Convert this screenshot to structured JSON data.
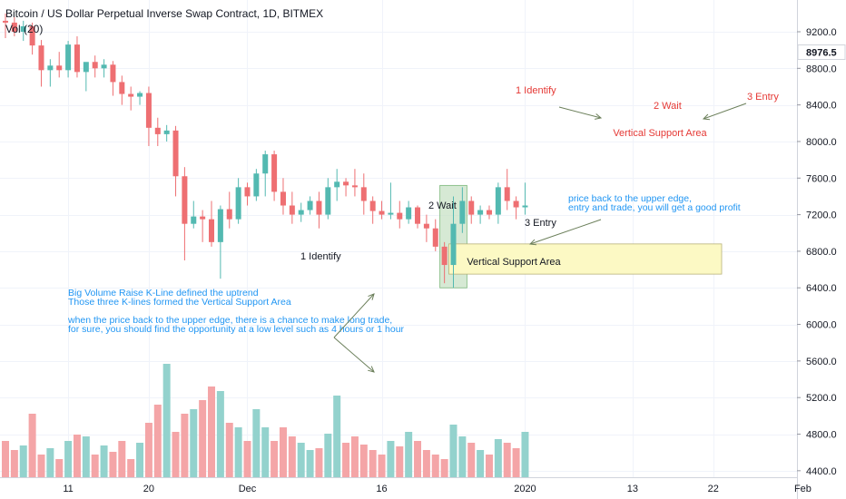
{
  "header": {
    "title": "Bitcoin / US Dollar Perpetual Inverse Swap Contract, 1D, BITMEX",
    "volume_label": "Vol (20)"
  },
  "colors": {
    "up": "#53b9b1",
    "down": "#ee6f72",
    "vol_up": "#93d2cd",
    "vol_down": "#f4a5a7",
    "annotation_blue": "#2196f3",
    "annotation_red": "#e53935",
    "highlight_green": "#c8e1c6",
    "support_yellow": "#fcf9c4",
    "price_label_bg": "#ffffff"
  },
  "chart_data": {
    "type": "candlestick",
    "price_axis": {
      "ticks": [
        4400,
        4800,
        5200,
        5600,
        6000,
        6400,
        6800,
        7200,
        7600,
        8000,
        8400,
        8800,
        9200
      ],
      "tick_labels": [
        "4400.0",
        "4800.0",
        "5200.0",
        "5600.0",
        "6000.0",
        "6400.0",
        "6800.0",
        "7200.0",
        "7600.0",
        "8000.0",
        "8400.0",
        "8800.0",
        "9200.0"
      ],
      "last_price": "8976.5"
    },
    "time_axis": {
      "ticks": [
        {
          "label": "11",
          "bar": 7
        },
        {
          "label": "20",
          "bar": 16
        },
        {
          "label": "Dec",
          "bar": 27
        },
        {
          "label": "16",
          "bar": 42
        },
        {
          "label": "2020",
          "bar": 58
        },
        {
          "label": "13",
          "bar": 70
        },
        {
          "label": "22",
          "bar": 79
        },
        {
          "label": "Feb",
          "bar": 89
        }
      ]
    },
    "candles": [
      {
        "o": 9320,
        "h": 9400,
        "l": 9130,
        "c": 9300
      },
      {
        "o": 9300,
        "h": 9360,
        "l": 9150,
        "c": 9200
      },
      {
        "o": 9200,
        "h": 9320,
        "l": 9100,
        "c": 9260
      },
      {
        "o": 9260,
        "h": 9300,
        "l": 8950,
        "c": 9050
      },
      {
        "o": 9050,
        "h": 9110,
        "l": 8600,
        "c": 8780
      },
      {
        "o": 8780,
        "h": 8900,
        "l": 8600,
        "c": 8830
      },
      {
        "o": 8830,
        "h": 8980,
        "l": 8700,
        "c": 8780
      },
      {
        "o": 8780,
        "h": 9100,
        "l": 8700,
        "c": 9060
      },
      {
        "o": 9060,
        "h": 9150,
        "l": 8700,
        "c": 8760
      },
      {
        "o": 8760,
        "h": 8860,
        "l": 8550,
        "c": 8870
      },
      {
        "o": 8870,
        "h": 8940,
        "l": 8700,
        "c": 8800
      },
      {
        "o": 8800,
        "h": 8900,
        "l": 8700,
        "c": 8840
      },
      {
        "o": 8840,
        "h": 8880,
        "l": 8500,
        "c": 8650
      },
      {
        "o": 8650,
        "h": 8720,
        "l": 8400,
        "c": 8520
      },
      {
        "o": 8520,
        "h": 8600,
        "l": 8340,
        "c": 8490
      },
      {
        "o": 8490,
        "h": 8550,
        "l": 8400,
        "c": 8530
      },
      {
        "o": 8530,
        "h": 8600,
        "l": 7950,
        "c": 8150
      },
      {
        "o": 8150,
        "h": 8260,
        "l": 7950,
        "c": 8080
      },
      {
        "o": 8080,
        "h": 8180,
        "l": 8000,
        "c": 8120
      },
      {
        "o": 8120,
        "h": 8170,
        "l": 7400,
        "c": 7620
      },
      {
        "o": 7620,
        "h": 7720,
        "l": 6700,
        "c": 7100
      },
      {
        "o": 7100,
        "h": 7350,
        "l": 7050,
        "c": 7180
      },
      {
        "o": 7180,
        "h": 7250,
        "l": 6900,
        "c": 7150
      },
      {
        "o": 7150,
        "h": 7350,
        "l": 6850,
        "c": 6900
      },
      {
        "o": 6900,
        "h": 7300,
        "l": 6500,
        "c": 7260
      },
      {
        "o": 7260,
        "h": 7450,
        "l": 7050,
        "c": 7150
      },
      {
        "o": 7150,
        "h": 7600,
        "l": 7100,
        "c": 7500
      },
      {
        "o": 7500,
        "h": 7550,
        "l": 7300,
        "c": 7400
      },
      {
        "o": 7400,
        "h": 7700,
        "l": 7350,
        "c": 7650
      },
      {
        "o": 7650,
        "h": 7900,
        "l": 7400,
        "c": 7860
      },
      {
        "o": 7860,
        "h": 7900,
        "l": 7350,
        "c": 7450
      },
      {
        "o": 7450,
        "h": 7600,
        "l": 7200,
        "c": 7300
      },
      {
        "o": 7300,
        "h": 7450,
        "l": 7100,
        "c": 7200
      },
      {
        "o": 7200,
        "h": 7330,
        "l": 7120,
        "c": 7250
      },
      {
        "o": 7250,
        "h": 7400,
        "l": 7200,
        "c": 7350
      },
      {
        "o": 7350,
        "h": 7450,
        "l": 7050,
        "c": 7200
      },
      {
        "o": 7200,
        "h": 7600,
        "l": 7150,
        "c": 7500
      },
      {
        "o": 7500,
        "h": 7700,
        "l": 7350,
        "c": 7560
      },
      {
        "o": 7560,
        "h": 7600,
        "l": 7400,
        "c": 7520
      },
      {
        "o": 7520,
        "h": 7700,
        "l": 7400,
        "c": 7500
      },
      {
        "o": 7500,
        "h": 7650,
        "l": 7200,
        "c": 7350
      },
      {
        "o": 7350,
        "h": 7400,
        "l": 7100,
        "c": 7240
      },
      {
        "o": 7240,
        "h": 7350,
        "l": 7150,
        "c": 7200
      },
      {
        "o": 7200,
        "h": 7550,
        "l": 7150,
        "c": 7220
      },
      {
        "o": 7220,
        "h": 7350,
        "l": 7050,
        "c": 7150
      },
      {
        "o": 7150,
        "h": 7350,
        "l": 7100,
        "c": 7280
      },
      {
        "o": 7280,
        "h": 7300,
        "l": 7050,
        "c": 7100
      },
      {
        "o": 7100,
        "h": 7200,
        "l": 6900,
        "c": 7050
      },
      {
        "o": 7050,
        "h": 7150,
        "l": 6800,
        "c": 6850
      },
      {
        "o": 6850,
        "h": 6900,
        "l": 6450,
        "c": 6650
      },
      {
        "o": 6650,
        "h": 7400,
        "l": 6400,
        "c": 7100
      },
      {
        "o": 7100,
        "h": 7500,
        "l": 7000,
        "c": 7350
      },
      {
        "o": 7350,
        "h": 7400,
        "l": 7100,
        "c": 7200
      },
      {
        "o": 7200,
        "h": 7300,
        "l": 7100,
        "c": 7250
      },
      {
        "o": 7250,
        "h": 7300,
        "l": 7150,
        "c": 7200
      },
      {
        "o": 7200,
        "h": 7550,
        "l": 7100,
        "c": 7500
      },
      {
        "o": 7500,
        "h": 7700,
        "l": 7250,
        "c": 7350
      },
      {
        "o": 7350,
        "h": 7400,
        "l": 7150,
        "c": 7280
      },
      {
        "o": 7280,
        "h": 7550,
        "l": 7200,
        "c": 7300
      }
    ],
    "volumes": [
      4800,
      4700,
      4750,
      5100,
      4650,
      4720,
      4600,
      4800,
      4870,
      4850,
      4650,
      4750,
      4680,
      4800,
      4600,
      4780,
      5000,
      5200,
      5650,
      4900,
      5100,
      5150,
      5250,
      5400,
      5350,
      5000,
      4950,
      4800,
      5150,
      4950,
      4800,
      4950,
      4850,
      4780,
      4700,
      4720,
      4880,
      5300,
      4780,
      4850,
      4760,
      4700,
      4650,
      4800,
      4740,
      4900,
      4800,
      4700,
      4650,
      4600,
      4980,
      4850,
      4780,
      4700,
      4650,
      4820,
      4780,
      4720,
      4900
    ]
  },
  "annotations": {
    "left_identify": "1 Identify",
    "left_wait": "2 Wait",
    "left_entry": "3 Entry",
    "left_support": "Vertical Support Area",
    "right_identify": "1 Identify",
    "right_wait": "2 Wait",
    "right_entry": "3 Entry",
    "right_support": "Vertical Support Area",
    "note_upper_1": "price back to the upper edge,",
    "note_upper_2": "entry and trade, you will get a good profit",
    "note_lower_1": "Big Volume Raise K-Line defined the uptrend",
    "note_lower_2": "Those three K-lines formed the Vertical Support Area",
    "note_lower_3": "when the price back to the upper edge, there is a chance to make long trade,",
    "note_lower_4": "for sure, you should find the opportunity at a low level such as 4 hours or 1 hour"
  }
}
